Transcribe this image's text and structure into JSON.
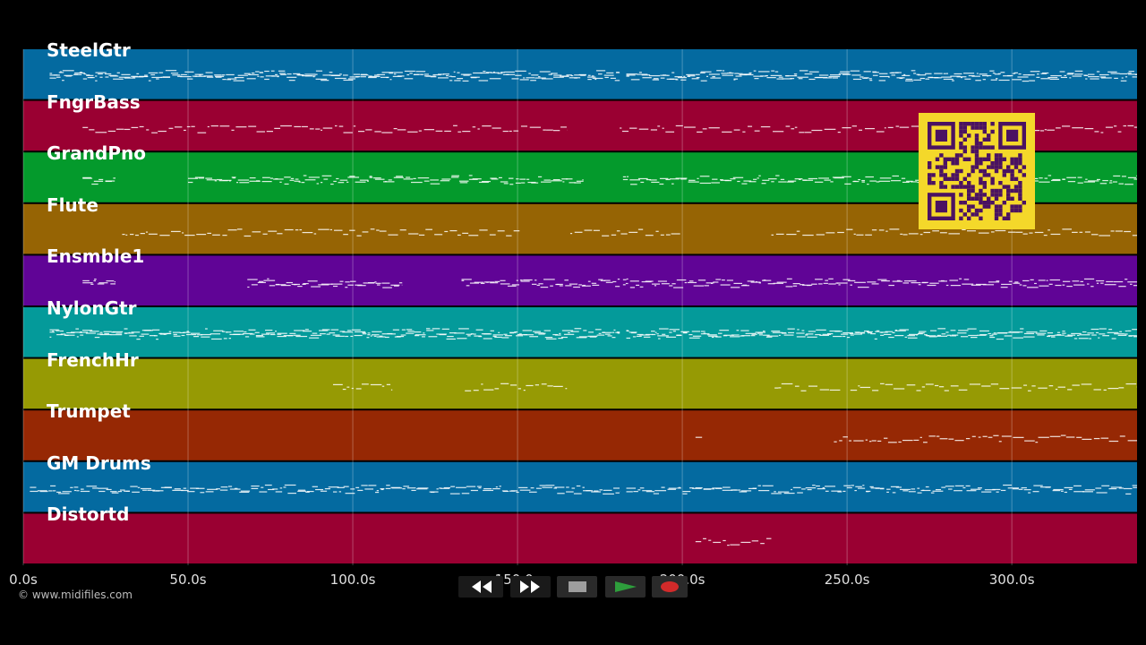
{
  "tracks": [
    {
      "name": "SteelGtr",
      "color": "#046aa0"
    },
    {
      "name": "FngrBass",
      "color": "#9a0032"
    },
    {
      "name": "GrandPno",
      "color": "#049a2c"
    },
    {
      "name": "Flute",
      "color": "#966404"
    },
    {
      "name": "Ensmble1",
      "color": "#600496"
    },
    {
      "name": "NylonGtr",
      "color": "#049a9a"
    },
    {
      "name": "FrenchHr",
      "color": "#969a04"
    },
    {
      "name": "Trumpet",
      "color": "#962804"
    },
    {
      "name": "GM Drums",
      "color": "#046aa0"
    },
    {
      "name": "Distortd",
      "color": "#9a0032"
    }
  ],
  "timeline": {
    "ticks": [
      "0.0s",
      "50.0s",
      "100.0s",
      "150.0s",
      "200.0s",
      "250.0s",
      "300.0s"
    ],
    "tick_values": [
      0,
      50,
      100,
      150,
      200,
      250,
      300
    ],
    "max_seconds": 338
  },
  "copyright": "© www.midifiles.com",
  "transport": {
    "rewind_icon": "rewind-icon",
    "fast_forward_icon": "fast-forward-icon",
    "stop_icon": "stop-icon",
    "play_icon": "play-icon",
    "record_icon": "record-icon",
    "play_color": "#2e9e3c",
    "record_color": "#d22a2a"
  },
  "qr": {
    "icon": "qr-code-icon",
    "color": "#f4d82a",
    "module_color": "#4a1262"
  }
}
